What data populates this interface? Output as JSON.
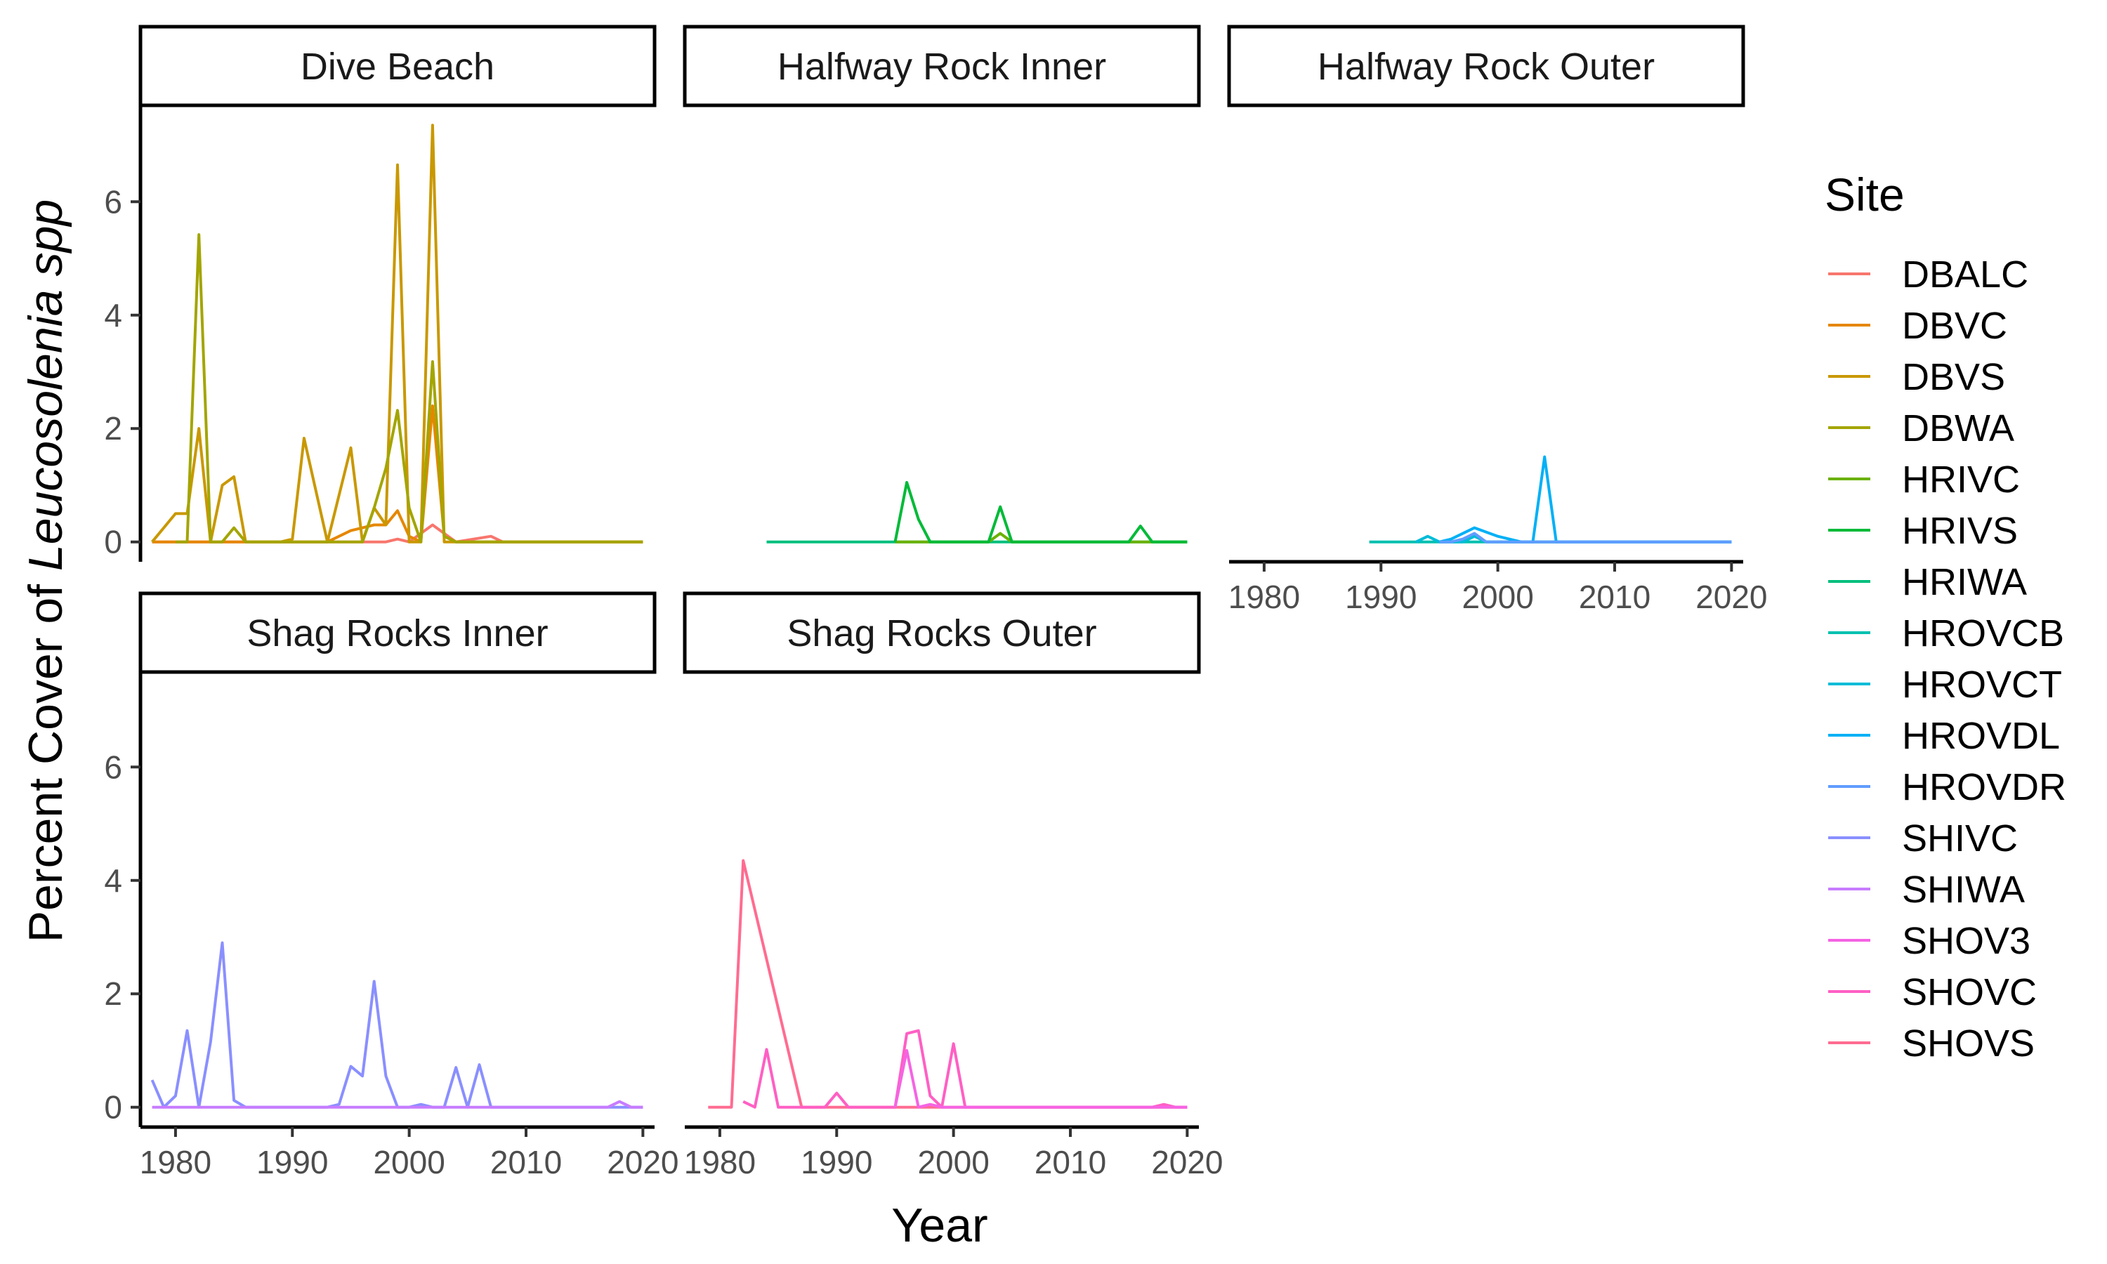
{
  "chart_data": {
    "type": "line",
    "xlabel": "Year",
    "ylabel_prefix": "Percent Cover of ",
    "ylabel_italic": "Leucosolenia spp",
    "xlim": [
      1977,
      2021
    ],
    "ylim": [
      -0.35,
      7.7
    ],
    "x_ticks": [
      1980,
      1990,
      2000,
      2010,
      2020
    ],
    "y_ticks": [
      0,
      2,
      4,
      6
    ],
    "legend": {
      "title": "Site",
      "placement": "right",
      "items": [
        {
          "name": "DBALC",
          "color": "#F8766D"
        },
        {
          "name": "DBVC",
          "color": "#E58700"
        },
        {
          "name": "DBVS",
          "color": "#C99800"
        },
        {
          "name": "DBWA",
          "color": "#A3A500"
        },
        {
          "name": "HRIVC",
          "color": "#6BB100"
        },
        {
          "name": "HRIVS",
          "color": "#00BA38"
        },
        {
          "name": "HRIWA",
          "color": "#00BF7D"
        },
        {
          "name": "HROVCB",
          "color": "#00C0AF"
        },
        {
          "name": "HROVCT",
          "color": "#00BCD8"
        },
        {
          "name": "HROVDL",
          "color": "#00B0F6"
        },
        {
          "name": "HROVDR",
          "color": "#619CFF"
        },
        {
          "name": "SHIVC",
          "color": "#8A8FFF"
        },
        {
          "name": "SHIWA",
          "color": "#C77CFF"
        },
        {
          "name": "SHOV3",
          "color": "#F564E3"
        },
        {
          "name": "SHOVC",
          "color": "#FF5FC4"
        },
        {
          "name": "SHOVS",
          "color": "#FF6C91"
        }
      ]
    },
    "panels": [
      {
        "title": "Dive Beach",
        "series": [
          {
            "name": "DBALC",
            "color": "#F8766D",
            "x": [
              1978,
              1980,
              1982,
              1984,
              1986,
              1990,
              1995,
              1998,
              1999,
              2000,
              2002,
              2003,
              2004,
              2007,
              2008,
              2015,
              2020
            ],
            "y": [
              0,
              0,
              0,
              0,
              0,
              0,
              0,
              0,
              0.05,
              0,
              0.3,
              0.15,
              0,
              0.1,
              0,
              0,
              0
            ]
          },
          {
            "name": "DBVC",
            "color": "#E58700",
            "x": [
              1978,
              1980,
              1982,
              1983,
              1985,
              1990,
              1993,
              1995,
              1997,
              1998,
              1999,
              2000,
              2001,
              2002,
              2003,
              2004,
              2008,
              2015,
              2020
            ],
            "y": [
              0,
              0,
              0,
              0,
              0,
              0,
              0,
              0.2,
              0.3,
              0.3,
              0.55,
              0.1,
              0,
              2.4,
              0.1,
              0,
              0,
              0,
              0
            ]
          },
          {
            "name": "DBVS",
            "color": "#C99800",
            "x": [
              1978,
              1980,
              1981,
              1982,
              1983,
              1984,
              1985,
              1986,
              1989,
              1990,
              1991,
              1993,
              1995,
              1996,
              1997,
              1998,
              1999,
              2000,
              2001,
              2002,
              2003,
              2004,
              2006,
              2010,
              2015,
              2020
            ],
            "y": [
              0,
              0.5,
              0.5,
              2,
              0,
              1,
              1.15,
              0,
              0,
              0.05,
              1.83,
              0,
              1.66,
              0,
              0.6,
              0.3,
              6.65,
              0,
              0,
              7.35,
              0,
              0,
              0,
              0,
              0,
              0
            ]
          },
          {
            "name": "DBWA",
            "color": "#A3A500",
            "x": [
              1980,
              1981,
              1982,
              1983,
              1984,
              1985,
              1986,
              1990,
              1994,
              1996,
              1997,
              1998,
              1999,
              2000,
              2001,
              2002,
              2003,
              2004,
              2010,
              2015,
              2020
            ],
            "y": [
              0,
              0,
              5.42,
              0,
              0,
              0.25,
              0,
              0,
              0,
              0,
              0.6,
              1.3,
              2.32,
              0.6,
              0,
              3.18,
              0.1,
              0,
              0,
              0,
              0
            ]
          }
        ]
      },
      {
        "title": "Halfway Rock Inner",
        "series": [
          {
            "name": "HRIWA",
            "color": "#00BF7D",
            "x": [
              1984,
              1990,
              1995,
              2000,
              2005,
              2010,
              2015,
              2020
            ],
            "y": [
              0,
              0,
              0,
              0,
              0,
              0,
              0,
              0
            ]
          },
          {
            "name": "HRIVC",
            "color": "#6BB100",
            "x": [
              1995,
              2000,
              2003,
              2004,
              2005,
              2010,
              2020
            ],
            "y": [
              0,
              0,
              0,
              0.15,
              0,
              0,
              0
            ]
          },
          {
            "name": "HRIVS",
            "color": "#00BA38",
            "x": [
              1995,
              1996,
              1997,
              1998,
              2003,
              2004,
              2005,
              2015,
              2016,
              2017,
              2020
            ],
            "y": [
              0,
              1.05,
              0.4,
              0,
              0,
              0.62,
              0,
              0,
              0.28,
              0,
              0
            ]
          }
        ]
      },
      {
        "title": "Halfway Rock Outer",
        "series": [
          {
            "name": "HROVCB",
            "color": "#00C0AF",
            "x": [
              1989,
              2000,
              2010,
              2020
            ],
            "y": [
              0,
              0,
              0,
              0
            ]
          },
          {
            "name": "HROVCT",
            "color": "#00BCD8",
            "x": [
              1993,
              1994,
              1995,
              1997,
              1998,
              1999,
              2000,
              2010,
              2020
            ],
            "y": [
              0,
              0.1,
              0,
              0,
              0.1,
              0,
              0,
              0,
              0
            ]
          },
          {
            "name": "HROVDL",
            "color": "#00B0F6",
            "x": [
              1995,
              1996,
              1998,
              2000,
              2002,
              2003,
              2004,
              2005,
              2010,
              2020
            ],
            "y": [
              0,
              0.05,
              0.25,
              0.1,
              0,
              0,
              1.5,
              0,
              0,
              0
            ]
          },
          {
            "name": "HROVDR",
            "color": "#619CFF",
            "x": [
              1995,
              1996,
              1997,
              1998,
              1999,
              2000,
              2010,
              2020
            ],
            "y": [
              0,
              0,
              0.05,
              0.15,
              0,
              0,
              0,
              0
            ]
          }
        ]
      },
      {
        "title": "Shag Rocks Inner",
        "series": [
          {
            "name": "SHIVC",
            "color": "#8A8FFF",
            "x": [
              1978,
              1979,
              1980,
              1981,
              1982,
              1983,
              1984,
              1985,
              1986,
              1990,
              1993,
              1994,
              1995,
              1996,
              1997,
              1998,
              1999,
              2000,
              2001,
              2002,
              2003,
              2004,
              2005,
              2006,
              2007,
              2010,
              2020
            ],
            "y": [
              0.48,
              0,
              0.2,
              1.35,
              0,
              1.15,
              2.9,
              0.12,
              0,
              0,
              0,
              0.05,
              0.72,
              0.55,
              2.22,
              0.55,
              0,
              0,
              0.05,
              0,
              0,
              0.7,
              0,
              0.75,
              0,
              0,
              0
            ]
          },
          {
            "name": "SHIWA",
            "color": "#C77CFF",
            "x": [
              1978,
              1985,
              1990,
              2000,
              2010,
              2017,
              2018,
              2019,
              2020
            ],
            "y": [
              0,
              0,
              0,
              0,
              0,
              0,
              0.1,
              0,
              0
            ]
          }
        ]
      },
      {
        "title": "Shag Rocks Outer",
        "series": [
          {
            "name": "SHOVS",
            "color": "#FF6C91",
            "x": [
              1979,
              1981,
              1982,
              1987,
              1990,
              2000,
              2020
            ],
            "y": [
              0,
              0,
              4.35,
              0,
              0,
              0,
              0
            ]
          },
          {
            "name": "SHOVC",
            "color": "#FF5FC4",
            "x": [
              1982,
              1983,
              1984,
              1985,
              1987,
              1989,
              1990,
              1991,
              1995,
              1996,
              1997,
              1998,
              1999,
              2000,
              2001,
              2005,
              2010,
              2017,
              2018,
              2019,
              2020
            ],
            "y": [
              0.1,
              0,
              1.02,
              0,
              0,
              0,
              0.25,
              0,
              0,
              1.3,
              1.35,
              0.2,
              0,
              1.12,
              0,
              0,
              0,
              0,
              0.05,
              0,
              0
            ]
          },
          {
            "name": "SHOV3",
            "color": "#F564E3",
            "x": [
              1995,
              1996,
              1997,
              1998,
              1999,
              2000,
              2010,
              2020
            ],
            "y": [
              0,
              1,
              0,
              0.05,
              0,
              0,
              0,
              0
            ]
          }
        ]
      }
    ]
  }
}
